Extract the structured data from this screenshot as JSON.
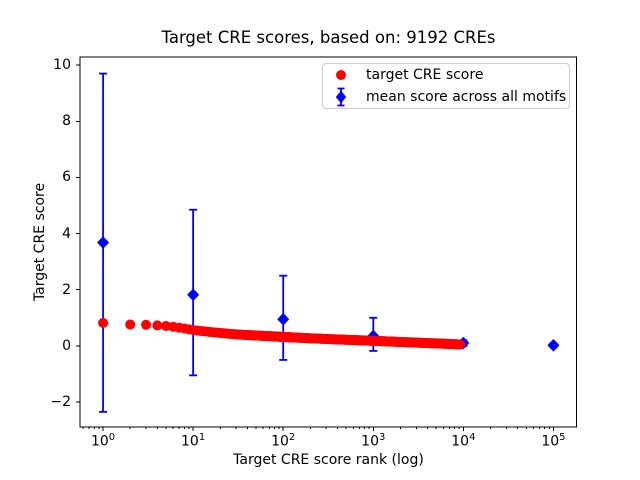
{
  "chart_data": {
    "type": "scatter",
    "title": "Target CRE scores, based on: 9192 CREs",
    "xlabel": "Target CRE score rank (log)",
    "ylabel": "Target CRE score",
    "x_scale": "log",
    "xlim_log10": [
      -0.256,
      5.256
    ],
    "ylim": [
      -2.89,
      10.29
    ],
    "x_tick_exponents": [
      0,
      1,
      2,
      3,
      4,
      5
    ],
    "y_ticks": [
      -2,
      0,
      2,
      4,
      6,
      8,
      10
    ],
    "grid": false,
    "legend": {
      "position": "upper right inside plot",
      "border_color": "#cccccc"
    },
    "series": [
      {
        "name": "target CRE score",
        "color": "#ff0000",
        "marker": "circle",
        "points_total": 9192,
        "rank_score_anchors": [
          [
            1,
            0.82
          ],
          [
            2,
            0.76
          ],
          [
            3,
            0.75
          ],
          [
            4,
            0.73
          ],
          [
            5,
            0.71
          ],
          [
            6,
            0.68
          ],
          [
            8,
            0.62
          ],
          [
            10,
            0.56
          ],
          [
            15,
            0.5
          ],
          [
            20,
            0.46
          ],
          [
            30,
            0.41
          ],
          [
            50,
            0.37
          ],
          [
            100,
            0.32
          ],
          [
            200,
            0.27
          ],
          [
            400,
            0.23
          ],
          [
            700,
            0.2
          ],
          [
            1000,
            0.18
          ],
          [
            2000,
            0.14
          ],
          [
            4000,
            0.1
          ],
          [
            7000,
            0.07
          ],
          [
            9192,
            0.05
          ]
        ]
      },
      {
        "name": "mean score across all motifs",
        "color": "#0000ff",
        "marker": "diamond",
        "points": [
          {
            "rank": 1,
            "mean": 3.68,
            "err_low": -2.35,
            "err_high": 9.7
          },
          {
            "rank": 10,
            "mean": 1.82,
            "err_low": -1.05,
            "err_high": 4.85
          },
          {
            "rank": 100,
            "mean": 0.95,
            "err_low": -0.5,
            "err_high": 2.5
          },
          {
            "rank": 1000,
            "mean": 0.35,
            "err_low": -0.18,
            "err_high": 1.0
          },
          {
            "rank": 10000,
            "mean": 0.1,
            "err_low": 0.0,
            "err_high": 0.2
          },
          {
            "rank": 100000,
            "mean": 0.02,
            "err_low": -0.05,
            "err_high": 0.09
          }
        ]
      }
    ]
  }
}
